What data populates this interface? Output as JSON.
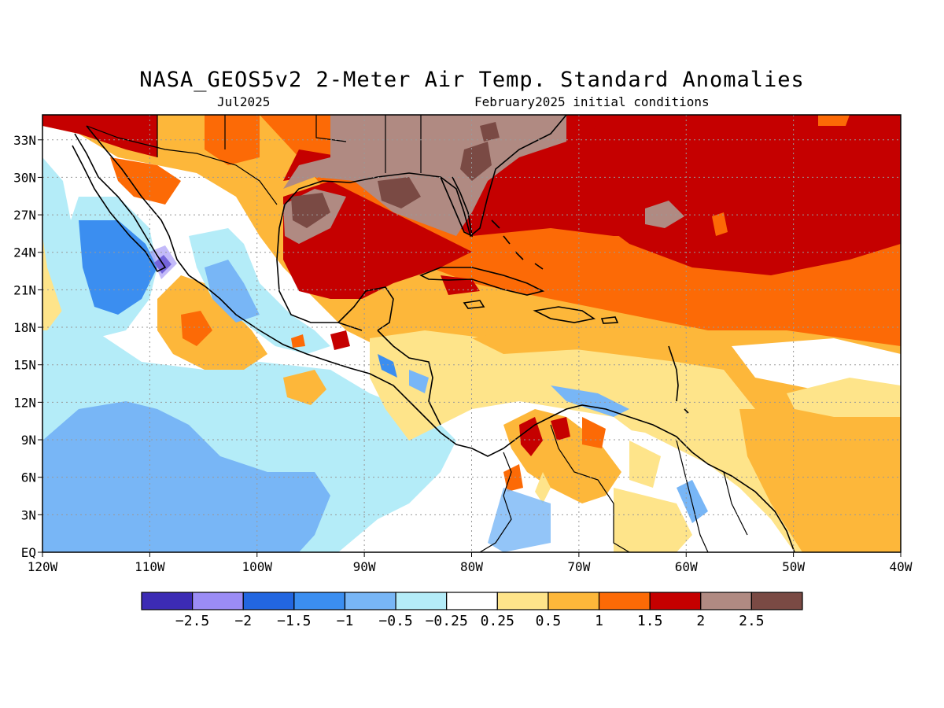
{
  "title": "NASA_GEOS5v2 2-Meter Air Temp. Standard Anomalies",
  "subtitle_left": "Jul2025",
  "subtitle_right": "February2025 initial conditions",
  "map": {
    "lon_range": [
      -120,
      -40
    ],
    "lat_range": [
      0,
      35
    ],
    "lat_labels": [
      "EQ",
      "3N",
      "6N",
      "9N",
      "12N",
      "15N",
      "18N",
      "21N",
      "24N",
      "27N",
      "30N",
      "33N"
    ],
    "lat_values": [
      0,
      3,
      6,
      9,
      12,
      15,
      18,
      21,
      24,
      27,
      30,
      33
    ],
    "lon_labels": [
      "120W",
      "110W",
      "100W",
      "90W",
      "80W",
      "70W",
      "60W",
      "50W",
      "40W"
    ],
    "lon_values": [
      -120,
      -110,
      -100,
      -90,
      -80,
      -70,
      -60,
      -50,
      -40
    ],
    "grid": "dotted"
  },
  "colorbar": {
    "colors": [
      "#3c2bb4",
      "#9b8cf5",
      "#2266e0",
      "#3b8ef0",
      "#78b6f6",
      "#b4ecf8",
      "#ffffff",
      "#fee48a",
      "#fdb73a",
      "#fc6a06",
      "#c50000",
      "#b08a82",
      "#7a4a44"
    ],
    "labels": [
      "−2.5",
      "−2",
      "−1.5",
      "−1",
      "−0.5",
      "−0.25",
      "0.25",
      "0.5",
      "1",
      "1.5",
      "2",
      "2.5"
    ]
  }
}
